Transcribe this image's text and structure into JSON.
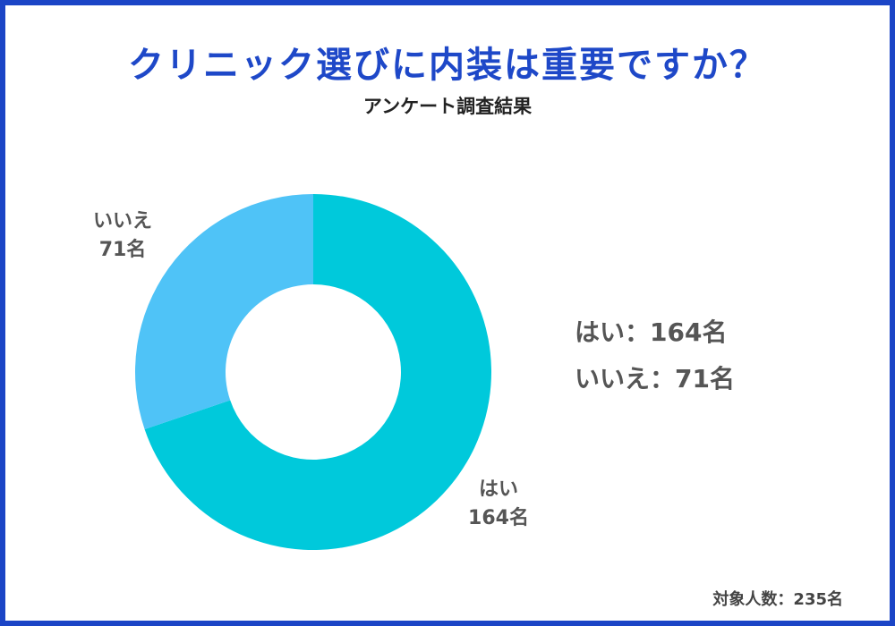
{
  "title": "クリニック選びに内装は重要ですか？",
  "subtitle": "アンケート調査結果",
  "chart_data": {
    "type": "pie",
    "donut": true,
    "categories": [
      "はい",
      "いいえ"
    ],
    "values": [
      164,
      71
    ],
    "unit": "名",
    "colors": [
      "#00c9db",
      "#4fc3f7"
    ],
    "slice_labels": [
      {
        "name": "はい",
        "value": "164名"
      },
      {
        "name": "いいえ",
        "value": "71名"
      }
    ],
    "legend": [
      "はい：164名",
      "いいえ：71名"
    ],
    "legend_placement": "right"
  },
  "footer": {
    "total": "対象人数：235名"
  },
  "colors": {
    "border": "#1b45c6",
    "title": "#1e48c8"
  }
}
